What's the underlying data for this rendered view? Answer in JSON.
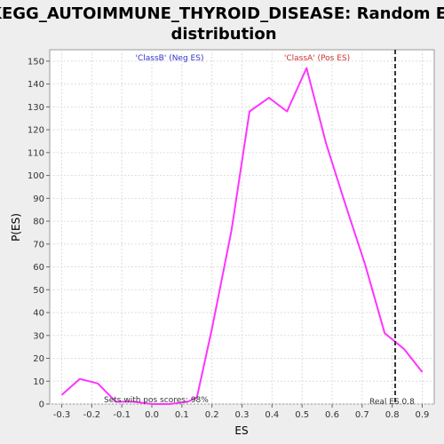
{
  "chart_data": {
    "type": "line",
    "title_line1": "KEGG_AUTOIMMUNE_THYROID_DISEASE: Random ES",
    "title_line2": "distribution",
    "xlabel": "ES",
    "ylabel": "P(ES)",
    "xlim": [
      -0.34,
      0.94
    ],
    "ylim": [
      0,
      155
    ],
    "x_ticks": [
      -0.3,
      -0.2,
      -0.1,
      0.0,
      0.1,
      0.2,
      0.3,
      0.4,
      0.5,
      0.6,
      0.7,
      0.8,
      0.9
    ],
    "x_tick_labels": [
      "-0.3",
      "-0.2",
      "-0.1",
      "0.0",
      "0.1",
      "0.2",
      "0.3",
      "0.4",
      "0.5",
      "0.6",
      "0.7",
      "0.8",
      "0.9"
    ],
    "y_ticks": [
      0,
      10,
      20,
      30,
      40,
      50,
      60,
      70,
      80,
      90,
      100,
      110,
      120,
      130,
      140,
      150
    ],
    "y_tick_labels": [
      "0",
      "10",
      "20",
      "30",
      "40",
      "50",
      "60",
      "70",
      "80",
      "90",
      "100",
      "110",
      "120",
      "130",
      "140",
      "150"
    ],
    "grid": true,
    "series": [
      {
        "color": "#ff33ff",
        "x": [
          -0.3,
          -0.24,
          -0.18,
          -0.12,
          -0.06,
          0.0,
          0.06,
          0.12,
          0.15,
          0.2,
          0.265,
          0.325,
          0.39,
          0.45,
          0.515,
          0.58,
          0.645,
          0.71,
          0.775,
          0.84,
          0.9
        ],
        "y": [
          4,
          11,
          9,
          1,
          1,
          0,
          0,
          1,
          3,
          33,
          76,
          128,
          134,
          128,
          147,
          114,
          87,
          61,
          31,
          24,
          14
        ]
      }
    ],
    "real_es": 0.81,
    "annotations": {
      "class_b": "'ClassB' (Neg ES)",
      "class_a": "'ClassA' (Pos ES)",
      "sets_pos": "Sets with pos scores: 98%",
      "real_es_label": "Real ES 0.8"
    },
    "colors": {
      "background": "#eeeeee",
      "plot_bg": "#ffffff",
      "grid": "#dddddd",
      "class_b": "#3333cc",
      "class_a": "#cc3333",
      "real_es_line": "#333333"
    }
  }
}
